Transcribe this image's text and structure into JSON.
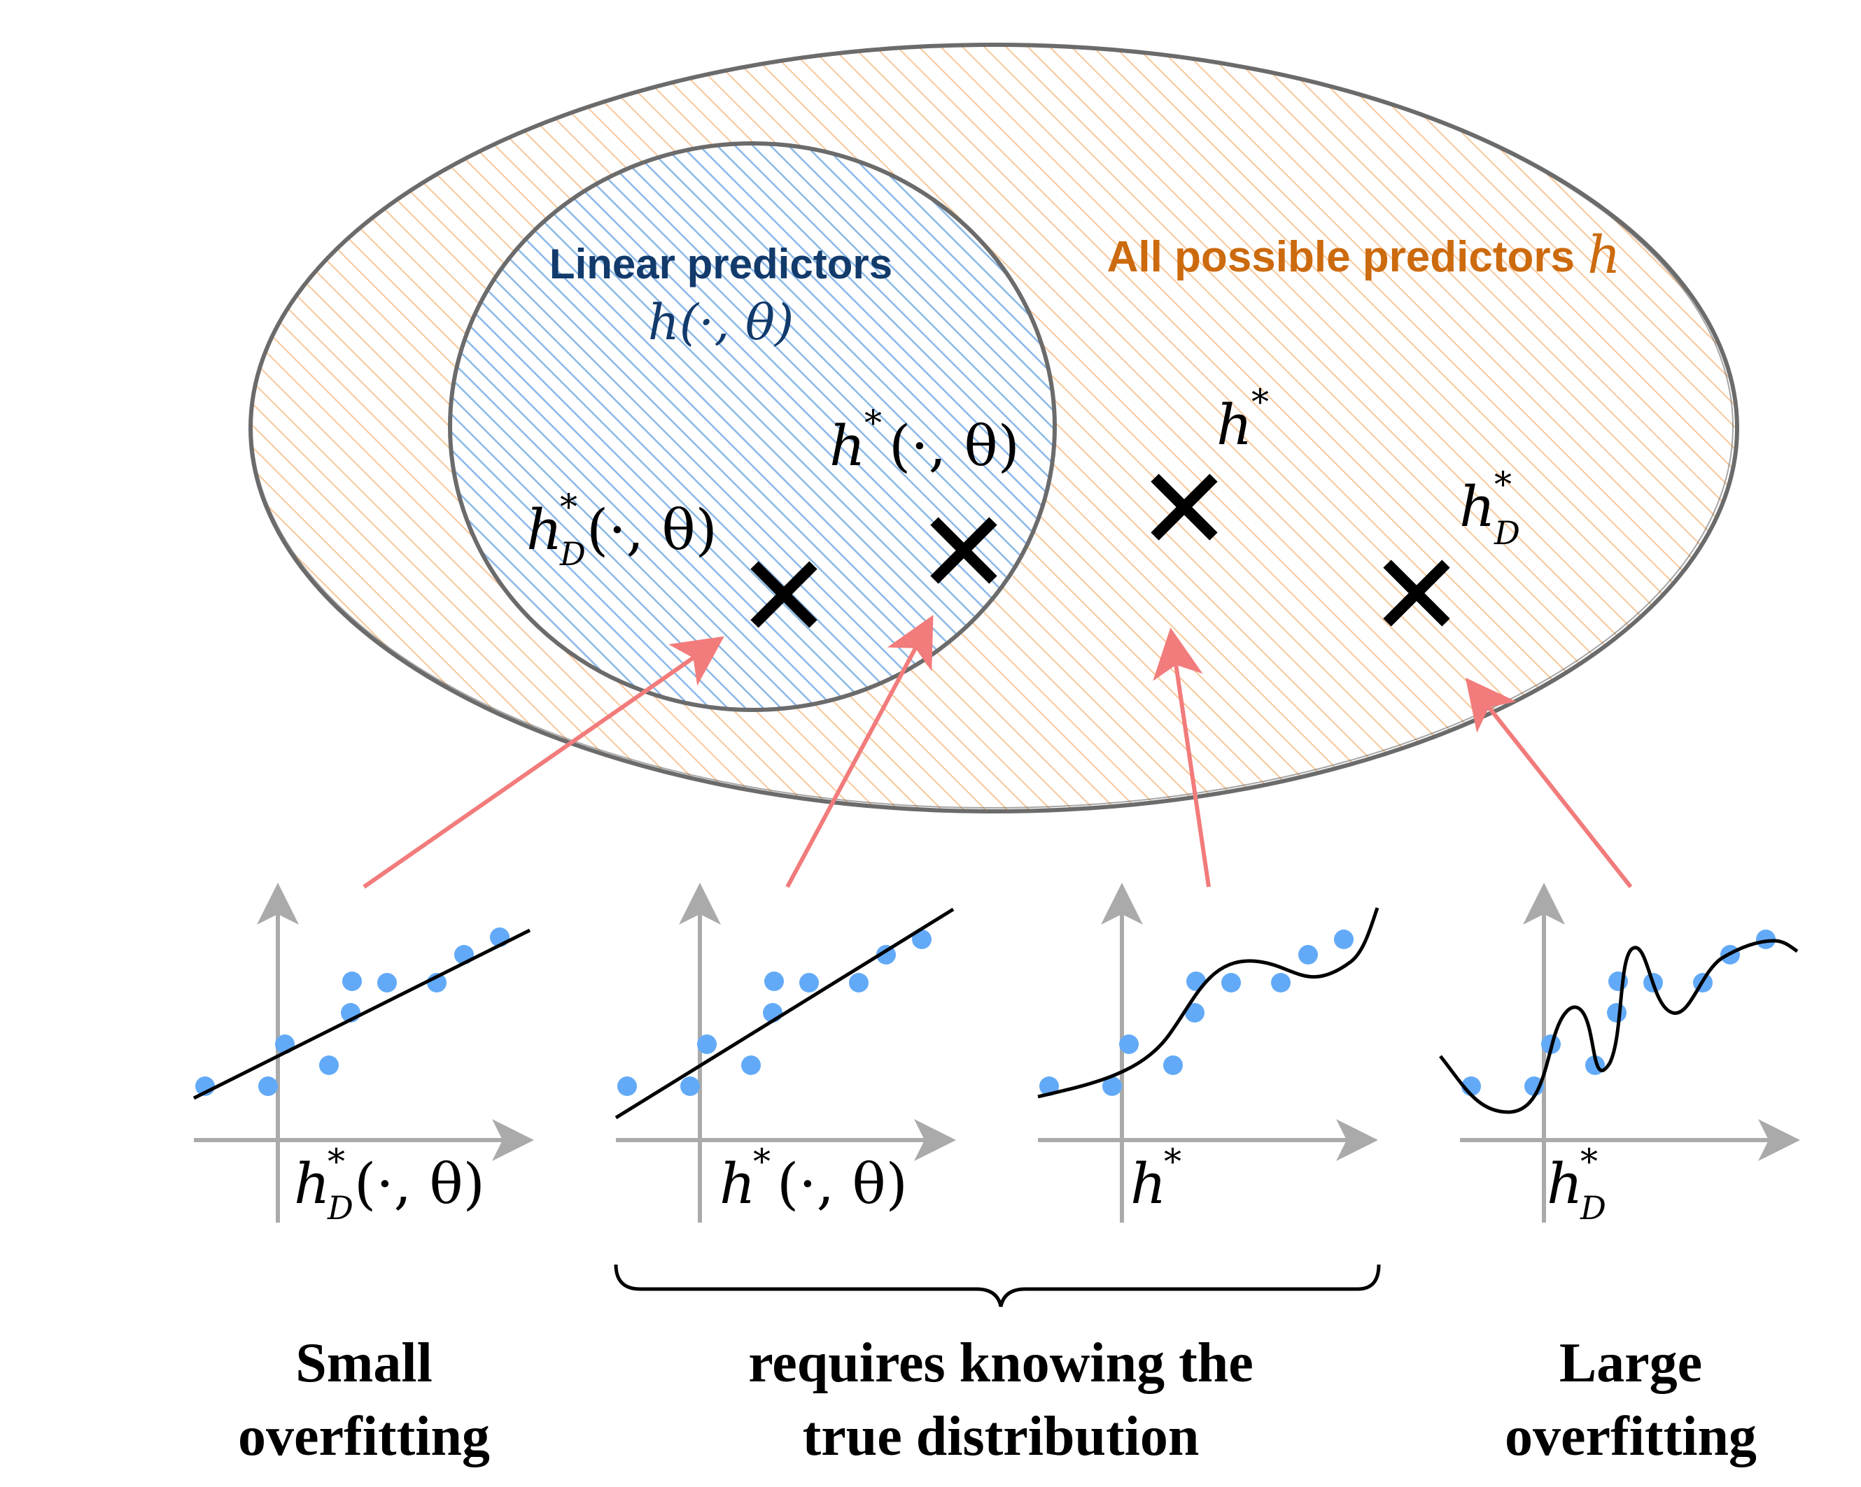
{
  "sets": {
    "outer_label": "All possible predictors",
    "outer_symbol": "h",
    "inner_label": "Linear predictors",
    "inner_symbol": "h(·, θ)"
  },
  "points": [
    {
      "id": "hD_lin",
      "base": "h",
      "sup": "*",
      "sub": "D",
      "args": "(·, θ)"
    },
    {
      "id": "h_lin",
      "base": "h",
      "sup": "*",
      "sub": "",
      "args": "(·, θ)"
    },
    {
      "id": "h_star",
      "base": "h",
      "sup": "*",
      "sub": "",
      "args": ""
    },
    {
      "id": "hD_star",
      "base": "h",
      "sup": "*",
      "sub": "D",
      "args": ""
    }
  ],
  "bottom": {
    "left_caption_1": "Small",
    "left_caption_2": "overfitting",
    "middle_caption_1": "requires knowing the",
    "middle_caption_2": "true distribution",
    "right_caption_1": "Large",
    "right_caption_2": "overfitting"
  },
  "colors": {
    "outer_hatch": "#f7c89a",
    "inner_hatch": "#8ab8e8",
    "ellipse_stroke": "#6b6b6b",
    "outer_label": "#cc6a0e",
    "inner_label": "#123a6b",
    "arrow": "#f27b7b",
    "point": "#62aaf7",
    "axis": "#aaaaaa"
  }
}
